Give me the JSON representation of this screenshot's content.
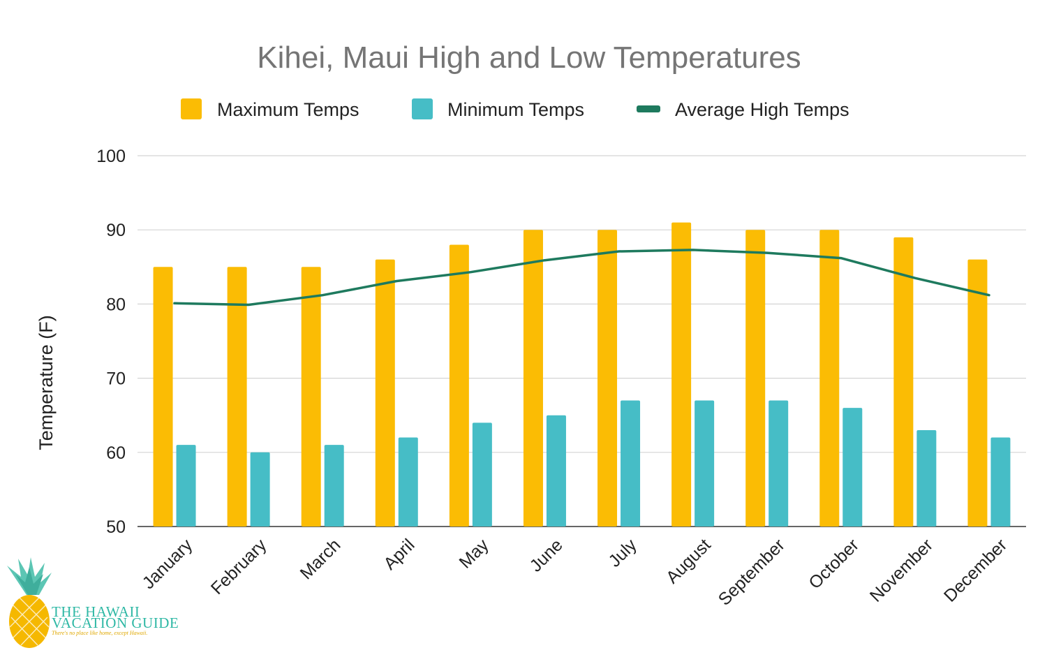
{
  "chart_data": {
    "type": "bar",
    "title": "Kihei, Maui High and Low Temperatures",
    "xlabel": "",
    "ylabel": "Temperature (F)",
    "ylim": [
      50,
      100
    ],
    "yticks": [
      50,
      60,
      70,
      80,
      90,
      100
    ],
    "grid": true,
    "legend_position": "top",
    "categories": [
      "January",
      "February",
      "March",
      "April",
      "May",
      "June",
      "July",
      "August",
      "September",
      "October",
      "November",
      "December"
    ],
    "series": [
      {
        "name": "Maximum Temps",
        "type": "bar",
        "color": "#fbbc04",
        "values": [
          85,
          85,
          85,
          86,
          88,
          90,
          90,
          91,
          90,
          90,
          89,
          86
        ]
      },
      {
        "name": "Minimum Temps",
        "type": "bar",
        "color": "#46bdc6",
        "values": [
          61,
          60,
          61,
          62,
          64,
          65,
          67,
          67,
          67,
          66,
          63,
          62
        ]
      },
      {
        "name": "Average High Temps",
        "type": "line",
        "color": "#1e7a5e",
        "values": [
          80.1,
          79.9,
          81.2,
          83.1,
          84.3,
          85.9,
          87.1,
          87.3,
          86.9,
          86.2,
          83.5,
          81.2
        ]
      }
    ]
  },
  "logo": {
    "line1": "THE HAWAII",
    "line2": "VACATION GUIDE",
    "tagline": "There's no place like home, except Hawaii."
  }
}
